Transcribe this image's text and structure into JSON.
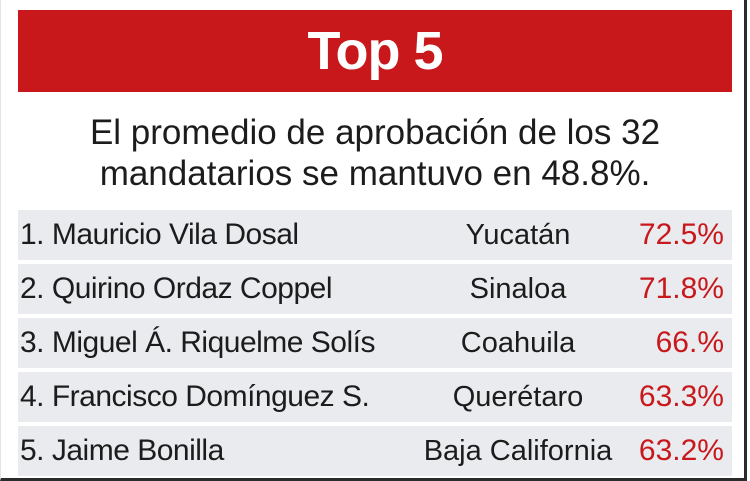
{
  "header": {
    "title": "Top 5"
  },
  "subtitle": {
    "line1": "El promedio de aprobación de los 32",
    "line2": "mandatarios se mantuvo en 48.8%."
  },
  "rows": [
    {
      "name": "1. Mauricio Vila Dosal",
      "state": "Yucatán",
      "pct": "72.5%"
    },
    {
      "name": "2. Quirino Ordaz Coppel",
      "state": "Sinaloa",
      "pct": "71.8%"
    },
    {
      "name": "3. Miguel Á. Riquelme Solís",
      "state": "Coahuila",
      "pct": "66.%"
    },
    {
      "name": "4.  Francisco Domínguez S.",
      "state": "Querétaro",
      "pct": "63.3%"
    },
    {
      "name": "5. Jaime Bonilla",
      "state": "Baja California",
      "pct": "63.2%"
    }
  ],
  "colors": {
    "accent": "#c8181c",
    "row_shade": "#e9ebee",
    "text": "#1c1c1c"
  }
}
